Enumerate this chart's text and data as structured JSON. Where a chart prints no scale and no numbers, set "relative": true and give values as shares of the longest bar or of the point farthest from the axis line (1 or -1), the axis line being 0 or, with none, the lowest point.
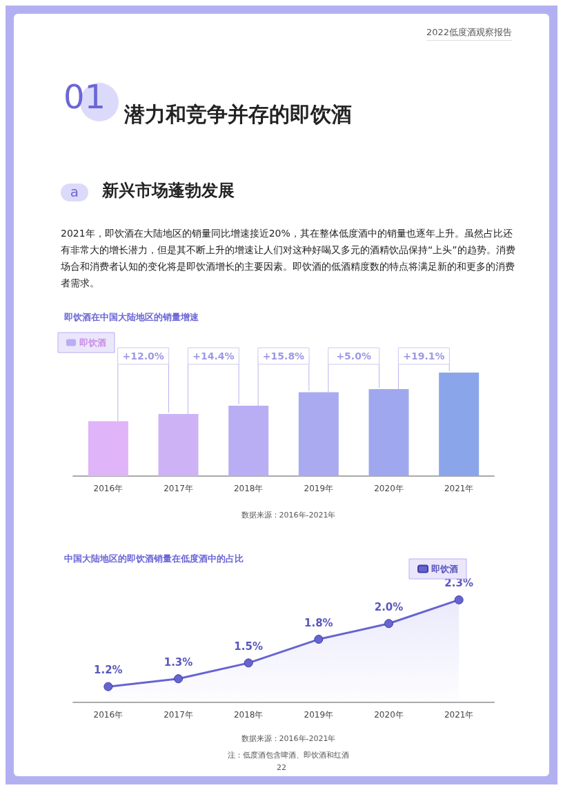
{
  "chart_data": [
    {
      "type": "other",
      "title": "潜力和竞争并存的即饮酒",
      "subtitle": "新兴市场蓬勃发展",
      "annotations": [
        "2022低度酒观察报告",
        "01",
        "a",
        "2021年，即饮酒在大陆地区的销量同比增速接近20%，其在整体低度酒中的销量也逐年上升。虽然占比还有非常大的增长潜力，但是其不断上升的增速让人们对这种好喝又多元的酒精饮品保持“上头”的趋势。消费场合和消费者认知的变化将是即饮酒增长的主要因素。即饮酒的低酒精度数的特点将满足新的和更多的消费者需求。",
        "22"
      ]
    },
    {
      "type": "bar",
      "title": "即饮酒在中国大陆地区的销量增速",
      "relative": true,
      "legend": "top left",
      "categories": [
        "2016年",
        "2017年",
        "2018年",
        "2019年",
        "2020年",
        "2021年"
      ],
      "series": [
        {
          "name": "即饮酒",
          "color": "#b9aef4",
          "colors": [
            "#e0b4f8",
            "#cdb3f6",
            "#b9aef4",
            "#a9aaf0",
            "#9fa8ee",
            "#8aa5ea"
          ],
          "values": [
            0.53,
            0.6,
            0.68,
            0.81,
            0.84,
            1
          ]
        }
      ],
      "annotations": [
        "+12.0%",
        "+14.4%",
        "+15.8%",
        "+5.0%",
        "+19.1%",
        "数据来源：2016年-2021年"
      ]
    },
    {
      "type": "area",
      "title": "中国大陆地区的即饮酒销量在低度酒中的占比",
      "legend": "top right",
      "marker": "circle",
      "categories": [
        "2016年",
        "2017年",
        "2018年",
        "2019年",
        "2020年",
        "2021年"
      ],
      "series": [
        {
          "name": "即饮酒",
          "color": "#6664d0",
          "values": [
            1.2,
            1.3,
            1.5,
            1.8,
            2.0,
            2.3
          ],
          "value_labels": [
            "1.2%",
            "1.3%",
            "1.5%",
            "1.8%",
            "2.0%",
            "2.3%"
          ]
        }
      ],
      "annotations": [
        "数据来源：2016年-2021年",
        "注：低度酒包含啤酒、即饮酒和红酒"
      ]
    }
  ]
}
